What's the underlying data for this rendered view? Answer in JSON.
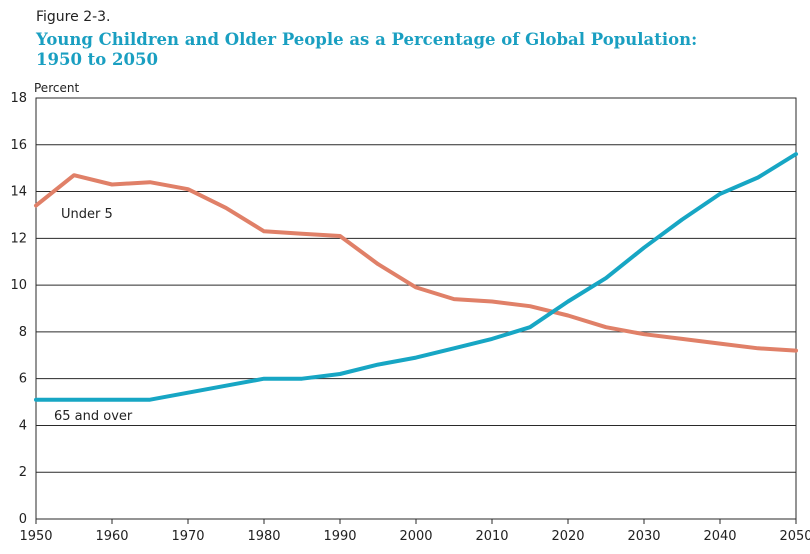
{
  "figure_label": "Figure 2-3.",
  "title_line1": "Young Children and Older People as a Percentage of Global Population:",
  "title_line2": "1950 to 2050",
  "colors": {
    "title": "#1a9fc1",
    "under5": "#e08068",
    "over65": "#17a6c4"
  },
  "chart_data": {
    "type": "line",
    "title": "Young Children and Older People as a Percentage of Global Population: 1950 to 2050",
    "xlabel": "",
    "ylabel": "Percent",
    "xlim": [
      1950,
      2050
    ],
    "ylim": [
      0,
      18
    ],
    "xticks": [
      1950,
      1960,
      1970,
      1980,
      1990,
      2000,
      2010,
      2020,
      2030,
      2040,
      2050
    ],
    "yticks": [
      0,
      2,
      4,
      6,
      8,
      10,
      12,
      14,
      16,
      18
    ],
    "grid": "horizontal",
    "series": [
      {
        "name": "Under 5",
        "color": "#e08068",
        "x": [
          1950,
          1955,
          1960,
          1965,
          1970,
          1975,
          1980,
          1985,
          1990,
          1995,
          2000,
          2005,
          2010,
          2015,
          2020,
          2025,
          2030,
          2035,
          2040,
          2045,
          2050
        ],
        "values": [
          13.4,
          14.7,
          14.3,
          14.4,
          14.1,
          13.3,
          12.3,
          12.2,
          12.1,
          10.9,
          9.9,
          9.4,
          9.3,
          9.1,
          8.7,
          8.2,
          7.9,
          7.7,
          7.5,
          7.3,
          7.2
        ]
      },
      {
        "name": "65 and over",
        "color": "#17a6c4",
        "x": [
          1950,
          1955,
          1960,
          1965,
          1970,
          1975,
          1980,
          1985,
          1990,
          1995,
          2000,
          2005,
          2010,
          2015,
          2020,
          2025,
          2030,
          2035,
          2040,
          2045,
          2050
        ],
        "values": [
          5.1,
          5.1,
          5.1,
          5.1,
          5.4,
          5.7,
          6.0,
          6.0,
          6.2,
          6.6,
          6.9,
          7.3,
          7.7,
          8.2,
          9.3,
          10.3,
          11.6,
          12.8,
          13.9,
          14.6,
          15.6
        ]
      }
    ]
  }
}
